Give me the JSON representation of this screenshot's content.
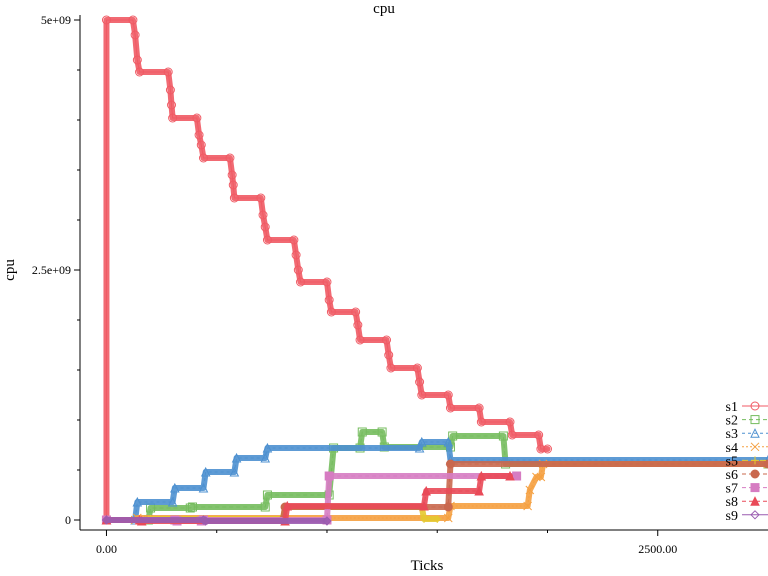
{
  "chart_data": {
    "type": "line",
    "title": "cpu",
    "xlabel": "Ticks",
    "ylabel": "cpu",
    "xlim": [
      -120,
      3000
    ],
    "ylim": [
      -100000000,
      5050000000
    ],
    "xticks": [
      {
        "value": 0,
        "label": "0.00"
      },
      {
        "value": 2500,
        "label": "2500.00"
      }
    ],
    "xminor": [
      500,
      1000,
      1500,
      2000
    ],
    "yticks": [
      {
        "value": 0,
        "label": "0"
      },
      {
        "value": 2500000000,
        "label": "2.5e+09"
      },
      {
        "value": 5000000000,
        "label": "5e+09"
      }
    ],
    "yminor": [
      500000000,
      1000000000,
      1500000000,
      2000000000,
      3000000000,
      3500000000,
      4000000000,
      4500000000
    ],
    "legend_position": "right",
    "series": [
      {
        "name": "s1",
        "color": "#f05a64",
        "marker": "circle-open",
        "dash": "",
        "points": [
          [
            0,
            0
          ],
          [
            0,
            5000000000
          ],
          [
            120,
            5000000000
          ],
          [
            130,
            4850000000
          ],
          [
            140,
            4600000000
          ],
          [
            150,
            4480000000
          ],
          [
            280,
            4480000000
          ],
          [
            290,
            4300000000
          ],
          [
            295,
            4150000000
          ],
          [
            300,
            4020000000
          ],
          [
            410,
            4020000000
          ],
          [
            420,
            3850000000
          ],
          [
            430,
            3750000000
          ],
          [
            440,
            3620000000
          ],
          [
            560,
            3620000000
          ],
          [
            570,
            3450000000
          ],
          [
            575,
            3350000000
          ],
          [
            580,
            3220000000
          ],
          [
            700,
            3220000000
          ],
          [
            710,
            3050000000
          ],
          [
            720,
            2930000000
          ],
          [
            730,
            2800000000
          ],
          [
            850,
            2800000000
          ],
          [
            860,
            2650000000
          ],
          [
            870,
            2500000000
          ],
          [
            880,
            2380000000
          ],
          [
            1000,
            2380000000
          ],
          [
            1010,
            2200000000
          ],
          [
            1020,
            2080000000
          ],
          [
            1130,
            2080000000
          ],
          [
            1140,
            1950000000
          ],
          [
            1150,
            1800000000
          ],
          [
            1270,
            1800000000
          ],
          [
            1280,
            1650000000
          ],
          [
            1290,
            1520000000
          ],
          [
            1410,
            1520000000
          ],
          [
            1420,
            1380000000
          ],
          [
            1430,
            1250000000
          ],
          [
            1550,
            1250000000
          ],
          [
            1560,
            1120000000
          ],
          [
            1690,
            1120000000
          ],
          [
            1700,
            980000000
          ],
          [
            1830,
            980000000
          ],
          [
            1840,
            850000000
          ],
          [
            1960,
            850000000
          ],
          [
            1970,
            710000000
          ],
          [
            2000,
            710000000
          ]
        ]
      },
      {
        "name": "s2",
        "color": "#75bc5e",
        "marker": "square-open",
        "dash": "4,3",
        "points": [
          [
            0,
            0
          ],
          [
            190,
            0
          ],
          [
            200,
            120000000
          ],
          [
            380,
            120000000
          ],
          [
            390,
            130000000
          ],
          [
            720,
            130000000
          ],
          [
            730,
            250000000
          ],
          [
            1010,
            250000000
          ],
          [
            1030,
            720000000
          ],
          [
            1150,
            720000000
          ],
          [
            1160,
            880000000
          ],
          [
            1250,
            880000000
          ],
          [
            1260,
            730000000
          ],
          [
            1560,
            730000000
          ],
          [
            1570,
            840000000
          ],
          [
            1800,
            840000000
          ],
          [
            1810,
            560000000
          ],
          [
            3000,
            560000000
          ]
        ]
      },
      {
        "name": "s3",
        "color": "#4d90d0",
        "marker": "triangle-open",
        "dash": "3,3",
        "points": [
          [
            0,
            0
          ],
          [
            130,
            0
          ],
          [
            140,
            180000000
          ],
          [
            300,
            180000000
          ],
          [
            310,
            320000000
          ],
          [
            440,
            320000000
          ],
          [
            450,
            480000000
          ],
          [
            580,
            480000000
          ],
          [
            590,
            620000000
          ],
          [
            720,
            620000000
          ],
          [
            730,
            720000000
          ],
          [
            1420,
            720000000
          ],
          [
            1430,
            780000000
          ],
          [
            1550,
            780000000
          ],
          [
            1560,
            600000000
          ],
          [
            3000,
            600000000
          ]
        ]
      },
      {
        "name": "s4",
        "color": "#f5a040",
        "marker": "x",
        "dash": "2,2",
        "points": [
          [
            0,
            0
          ],
          [
            130,
            0
          ],
          [
            140,
            20000000
          ],
          [
            1550,
            20000000
          ],
          [
            1560,
            140000000
          ],
          [
            1910,
            140000000
          ],
          [
            1920,
            300000000
          ],
          [
            1950,
            430000000
          ],
          [
            1970,
            430000000
          ],
          [
            1980,
            560000000
          ],
          [
            3000,
            560000000
          ]
        ]
      },
      {
        "name": "s5",
        "color": "#e5c830",
        "marker": "plus",
        "dash": "6,3",
        "points": [
          [
            0,
            0
          ],
          [
            190,
            0
          ],
          [
            200,
            10000000
          ],
          [
            800,
            10000000
          ],
          [
            810,
            130000000
          ],
          [
            1430,
            130000000
          ],
          [
            1440,
            10000000
          ],
          [
            1500,
            10000000
          ]
        ]
      },
      {
        "name": "s6",
        "color": "#c9684e",
        "marker": "circle-filled",
        "dash": "4,3",
        "points": [
          [
            0,
            0
          ],
          [
            800,
            0
          ],
          [
            810,
            130000000
          ],
          [
            1550,
            130000000
          ],
          [
            1560,
            560000000
          ],
          [
            3000,
            560000000
          ]
        ]
      },
      {
        "name": "s7",
        "color": "#d67cc2",
        "marker": "square-filled",
        "dash": "4,3",
        "points": [
          [
            0,
            0
          ],
          [
            310,
            0
          ],
          [
            320,
            -10000000
          ],
          [
            430,
            -10000000
          ],
          [
            440,
            0
          ],
          [
            1000,
            0
          ],
          [
            1010,
            440000000
          ],
          [
            1860,
            440000000
          ]
        ]
      },
      {
        "name": "s8",
        "color": "#e94a58",
        "marker": "triangle-filled",
        "dash": "4,3",
        "points": [
          [
            0,
            0
          ],
          [
            150,
            0
          ],
          [
            160,
            -10000000
          ],
          [
            810,
            -10000000
          ],
          [
            820,
            140000000
          ],
          [
            1440,
            140000000
          ],
          [
            1450,
            290000000
          ],
          [
            1690,
            290000000
          ],
          [
            1700,
            440000000
          ],
          [
            1830,
            440000000
          ]
        ]
      },
      {
        "name": "s9",
        "color": "#9a5cb0",
        "marker": "diamond-open",
        "dash": "",
        "points": [
          [
            0,
            0
          ],
          [
            440,
            0
          ],
          [
            450,
            -10000000
          ],
          [
            1000,
            -10000000
          ]
        ]
      }
    ]
  }
}
